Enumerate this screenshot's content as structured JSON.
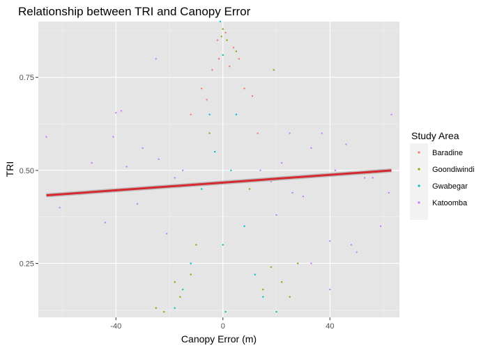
{
  "chart_data": {
    "type": "scatter",
    "title": "Relationship between TRI and Canopy Error",
    "xlabel": "Canopy Error (m)",
    "ylabel": "TRI",
    "xlim": [
      -69,
      66
    ],
    "ylim": [
      0.105,
      0.9
    ],
    "x_ticks": [
      -40,
      0,
      40
    ],
    "x_tick_labels": [
      "-40",
      "0",
      "40"
    ],
    "y_ticks": [
      0.25,
      0.5,
      0.75
    ],
    "y_tick_labels": [
      "0.25",
      "0.50",
      "0.75"
    ],
    "grid": true,
    "background": "#e5e5e5",
    "legend": {
      "title": "Study Area",
      "placement": "right"
    },
    "series": [
      {
        "name": "Baradine",
        "color": "#f8766d",
        "points": [
          [
            -1.5,
            0.8
          ],
          [
            2.5,
            0.78
          ],
          [
            6,
            0.8
          ],
          [
            -4,
            0.77
          ],
          [
            8,
            0.72
          ],
          [
            -8,
            0.72
          ],
          [
            11,
            0.7
          ],
          [
            -2,
            0.85
          ],
          [
            4,
            0.83
          ],
          [
            -6,
            0.69
          ],
          [
            13,
            0.6
          ],
          [
            -12,
            0.65
          ],
          [
            1,
            0.87
          ]
        ]
      },
      {
        "name": "Goondiwindi",
        "color": "#7cae00",
        "points": [
          [
            0,
            0.88
          ],
          [
            -0.5,
            0.86
          ],
          [
            1.5,
            0.85
          ],
          [
            19,
            0.77
          ],
          [
            -12,
            0.22
          ],
          [
            -16,
            0.16
          ],
          [
            22,
            0.2
          ],
          [
            -22,
            0.12
          ],
          [
            25,
            0.16
          ],
          [
            -25,
            0.13
          ],
          [
            18,
            0.24
          ],
          [
            -10,
            0.3
          ],
          [
            10,
            0.45
          ],
          [
            -5,
            0.6
          ],
          [
            28,
            0.25
          ],
          [
            -18,
            0.2
          ],
          [
            15,
            0.18
          ],
          [
            5,
            0.82
          ]
        ]
      },
      {
        "name": "Gwabegar",
        "color": "#00bfc4",
        "points": [
          [
            0,
            0.81
          ],
          [
            -3,
            0.55
          ],
          [
            3,
            0.5
          ],
          [
            -8,
            0.45
          ],
          [
            8,
            0.35
          ],
          [
            -12,
            0.25
          ],
          [
            12,
            0.22
          ],
          [
            -15,
            0.18
          ],
          [
            15,
            0.16
          ],
          [
            -18,
            0.13
          ],
          [
            20,
            0.12
          ],
          [
            0,
            0.3
          ],
          [
            5,
            0.65
          ],
          [
            -5,
            0.65
          ],
          [
            1,
            0.12
          ],
          [
            -1,
            0.9
          ]
        ]
      },
      {
        "name": "Katoomba",
        "color": "#c77cff",
        "points": [
          [
            -66,
            0.59
          ],
          [
            -61,
            0.4
          ],
          [
            -49,
            0.52
          ],
          [
            -44,
            0.36
          ],
          [
            -41,
            0.59
          ],
          [
            -40,
            0.655
          ],
          [
            -38,
            0.66
          ],
          [
            -36,
            0.51
          ],
          [
            -32,
            0.41
          ],
          [
            -30,
            0.56
          ],
          [
            -25,
            0.8
          ],
          [
            -24,
            0.53
          ],
          [
            -21,
            0.33
          ],
          [
            -18,
            0.48
          ],
          [
            -15,
            0.5
          ],
          [
            -13,
            0.46
          ],
          [
            14,
            0.5
          ],
          [
            18,
            0.47
          ],
          [
            22,
            0.52
          ],
          [
            26,
            0.44
          ],
          [
            30,
            0.43
          ],
          [
            33,
            0.25
          ],
          [
            37,
            0.6
          ],
          [
            42,
            0.5
          ],
          [
            40,
            0.31
          ],
          [
            46,
            0.57
          ],
          [
            48,
            0.3
          ],
          [
            50,
            0.28
          ],
          [
            53,
            0.48
          ],
          [
            56,
            0.48
          ],
          [
            59,
            0.35
          ],
          [
            62,
            0.44
          ],
          [
            63,
            0.65
          ],
          [
            40,
            0.18
          ],
          [
            33,
            0.56
          ],
          [
            25,
            0.6
          ],
          [
            20,
            0.38
          ]
        ]
      }
    ],
    "trend_line": {
      "color": "#d7282f",
      "x": [
        -66,
        63
      ],
      "y": [
        0.433,
        0.5
      ]
    }
  }
}
